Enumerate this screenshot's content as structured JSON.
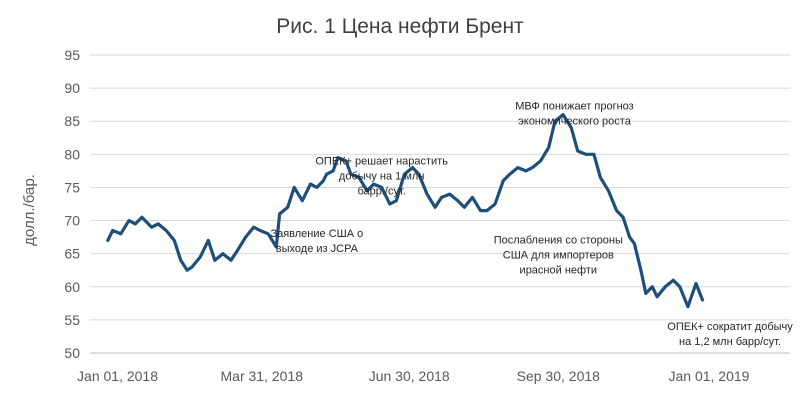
{
  "chart_data": {
    "type": "line",
    "title": "Рис. 1 Цена нефти Брент",
    "ylabel": "долл./бар.",
    "xlabel": "",
    "ylim": [
      50,
      95
    ],
    "yticks": [
      50,
      55,
      60,
      65,
      70,
      75,
      80,
      85,
      90,
      95
    ],
    "xlim": [
      "2017-12-15",
      "2019-02-20"
    ],
    "xticks": [
      {
        "date": "2018-01-01",
        "label": "Jan 01, 2018"
      },
      {
        "date": "2018-03-31",
        "label": "Mar 31, 2018"
      },
      {
        "date": "2018-06-30",
        "label": "Jun 30, 2018"
      },
      {
        "date": "2018-09-30",
        "label": "Sep 30, 2018"
      },
      {
        "date": "2019-01-01",
        "label": "Jan 01, 2019"
      }
    ],
    "grid": true,
    "line_color": "#1f4e79",
    "series": [
      {
        "x": [
          "2017-12-26",
          "2017-12-29",
          "2018-01-03",
          "2018-01-08",
          "2018-01-12",
          "2018-01-16",
          "2018-01-22",
          "2018-01-26",
          "2018-01-31",
          "2018-02-05",
          "2018-02-09",
          "2018-02-13",
          "2018-02-16",
          "2018-02-21",
          "2018-02-26",
          "2018-03-02",
          "2018-03-07",
          "2018-03-12",
          "2018-03-16",
          "2018-03-21",
          "2018-03-26",
          "2018-03-30",
          "2018-04-04",
          "2018-04-09",
          "2018-04-11",
          "2018-04-16",
          "2018-04-20",
          "2018-04-25",
          "2018-04-30",
          "2018-05-04",
          "2018-05-08",
          "2018-05-10",
          "2018-05-14",
          "2018-05-17",
          "2018-05-22",
          "2018-05-25",
          "2018-05-30",
          "2018-06-04",
          "2018-06-08",
          "2018-06-13",
          "2018-06-18",
          "2018-06-22",
          "2018-06-27",
          "2018-07-02",
          "2018-07-06",
          "2018-07-11",
          "2018-07-16",
          "2018-07-20",
          "2018-07-25",
          "2018-07-30",
          "2018-08-03",
          "2018-08-08",
          "2018-08-13",
          "2018-08-17",
          "2018-08-22",
          "2018-08-27",
          "2018-08-31",
          "2018-09-05",
          "2018-09-10",
          "2018-09-14",
          "2018-09-19",
          "2018-09-24",
          "2018-09-28",
          "2018-10-03",
          "2018-10-08",
          "2018-10-12",
          "2018-10-17",
          "2018-10-22",
          "2018-10-26",
          "2018-10-31",
          "2018-11-05",
          "2018-11-09",
          "2018-11-13",
          "2018-11-16",
          "2018-11-20",
          "2018-11-23",
          "2018-11-27",
          "2018-11-30",
          "2018-12-05",
          "2018-12-10",
          "2018-12-14",
          "2018-12-19",
          "2018-12-24",
          "2018-12-28"
        ],
        "y": [
          67,
          68.5,
          68,
          70,
          69.5,
          70.5,
          69,
          69.5,
          68.5,
          67,
          64,
          62.5,
          63,
          64.5,
          67,
          64,
          65,
          64,
          65.5,
          67.5,
          69,
          68.5,
          68,
          66,
          71,
          72,
          75,
          73,
          75.5,
          75,
          76,
          77,
          77.5,
          79.5,
          79,
          77,
          76.5,
          74.5,
          75.5,
          75,
          72.5,
          73,
          77,
          78,
          77,
          74,
          72,
          73.5,
          74,
          73,
          72,
          73.5,
          71.5,
          71.5,
          72.5,
          76,
          77,
          78,
          77.5,
          78,
          79,
          81,
          85,
          86,
          84,
          80.5,
          80,
          80,
          76.5,
          74.5,
          71.5,
          70.5,
          67.5,
          66.5,
          62.5,
          59,
          60,
          58.5,
          60,
          61,
          60,
          57,
          60.5,
          58
        ]
      }
    ],
    "annotations": [
      {
        "lines": [
          "ОПЕК+ решает нарастить",
          "добычу на 1 млн",
          "барр./сут."
        ],
        "x": "2018-06-13",
        "y": 78.5
      },
      {
        "lines": [
          "Заявление США о",
          "выходе из JCPA"
        ],
        "x": "2018-05-04",
        "y": 67.5
      },
      {
        "lines": [
          "МВФ понижает прогноз",
          "экономического роста"
        ],
        "x": "2018-10-10",
        "y": 86.8
      },
      {
        "lines": [
          "Послабления со стороны",
          "США для импортеров",
          "ирасной нефти"
        ],
        "x": "2018-09-30",
        "y": 66.5
      },
      {
        "lines": [
          "ОПЕК+ сократит добычу",
          "на 1,2 млн барр/сут."
        ],
        "x": "2019-01-14",
        "y": 53.5
      }
    ]
  }
}
